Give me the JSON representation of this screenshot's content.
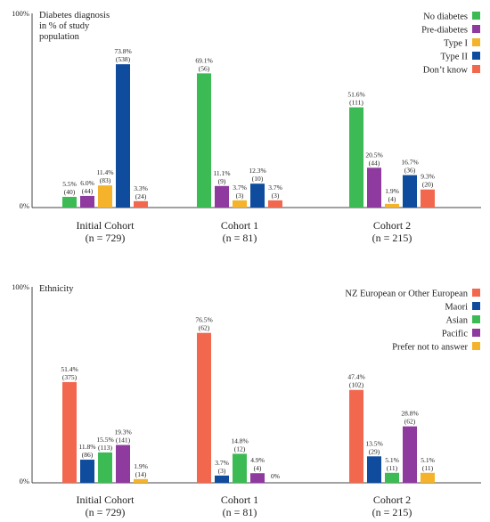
{
  "chart_data": [
    {
      "type": "bar",
      "title": "Diabetes diagnosis in % of study population",
      "title_lines": [
        "Diabetes diagnosis",
        "in % of study",
        "population"
      ],
      "y_tick_labels": [
        "100%",
        "0%"
      ],
      "ylim": [
        0,
        100
      ],
      "grid": false,
      "legend_position": "top-right",
      "categories": [
        "Initial Cohort",
        "Cohort 1",
        "Cohort 2"
      ],
      "category_sublabels": [
        "(n = 729)",
        "(n = 81)",
        "(n = 215)"
      ],
      "series": [
        {
          "name": "No diabetes",
          "color": "#3cba54",
          "values": [
            5.5,
            69.1,
            51.6
          ],
          "labels": [
            "5.5%",
            "69.1%",
            "51.6%"
          ],
          "counts": [
            "(40)",
            "(56)",
            "(111)"
          ]
        },
        {
          "name": "Pre-diabetes",
          "color": "#8e3a9e",
          "values": [
            6.0,
            11.1,
            20.5
          ],
          "labels": [
            "6.0%",
            "11.1%",
            "20.5%"
          ],
          "counts": [
            "(44)",
            "(9)",
            "(44)"
          ]
        },
        {
          "name": "Type I",
          "color": "#f4b32a",
          "values": [
            11.4,
            3.7,
            1.9
          ],
          "labels": [
            "11.4%",
            "3.7%",
            "1.9%"
          ],
          "counts": [
            "(83)",
            "(3)",
            "(4)"
          ]
        },
        {
          "name": "Type II",
          "color": "#0f4c9e",
          "values": [
            73.8,
            12.3,
            16.7
          ],
          "labels": [
            "73.8%",
            "12.3%",
            "16.7%"
          ],
          "counts": [
            "(538)",
            "(10)",
            "(36)"
          ]
        },
        {
          "name": "Don’t know",
          "color": "#f2684f",
          "values": [
            3.3,
            3.7,
            9.3
          ],
          "labels": [
            "3.3%",
            "3.7%",
            "9.3%"
          ],
          "counts": [
            "(24)",
            "(3)",
            "(20)"
          ]
        }
      ]
    },
    {
      "type": "bar",
      "title": "Ethnicity",
      "title_lines": [
        "Ethnicity"
      ],
      "y_tick_labels": [
        "100%",
        "0%"
      ],
      "ylim": [
        0,
        100
      ],
      "grid": false,
      "legend_position": "top-right",
      "categories": [
        "Initial Cohort",
        "Cohort 1",
        "Cohort 2"
      ],
      "category_sublabels": [
        "(n = 729)",
        "(n = 81)",
        "(n = 215)"
      ],
      "series": [
        {
          "name": "NZ European or Other European",
          "color": "#f2684f",
          "values": [
            51.4,
            76.5,
            47.4
          ],
          "labels": [
            "51.4%",
            "76.5%",
            "47.4%"
          ],
          "counts": [
            "(375)",
            "(62)",
            "(102)"
          ]
        },
        {
          "name": "Maori",
          "color": "#0f4c9e",
          "values": [
            11.8,
            3.7,
            13.5
          ],
          "labels": [
            "11.8%",
            "3.7%",
            "13.5%"
          ],
          "counts": [
            "(86)",
            "(3)",
            "(29)"
          ]
        },
        {
          "name": "Asian",
          "color": "#3cba54",
          "values": [
            15.5,
            14.8,
            5.1
          ],
          "labels": [
            "15.5%",
            "14.8%",
            "5.1%"
          ],
          "counts": [
            "(113)",
            "(12)",
            "(11)"
          ]
        },
        {
          "name": "Pacific",
          "color": "#8e3a9e",
          "values": [
            19.3,
            4.9,
            28.8
          ],
          "labels": [
            "19.3%",
            "4.9%",
            "28.8%"
          ],
          "counts": [
            "(141)",
            "(4)",
            "(62)"
          ]
        },
        {
          "name": "Prefer not to answer",
          "color": "#f4b32a",
          "values": [
            1.9,
            0,
            5.1
          ],
          "labels": [
            "1.9%",
            "0%",
            "5.1%"
          ],
          "counts": [
            "(14)",
            "",
            "(11)"
          ]
        }
      ]
    }
  ]
}
